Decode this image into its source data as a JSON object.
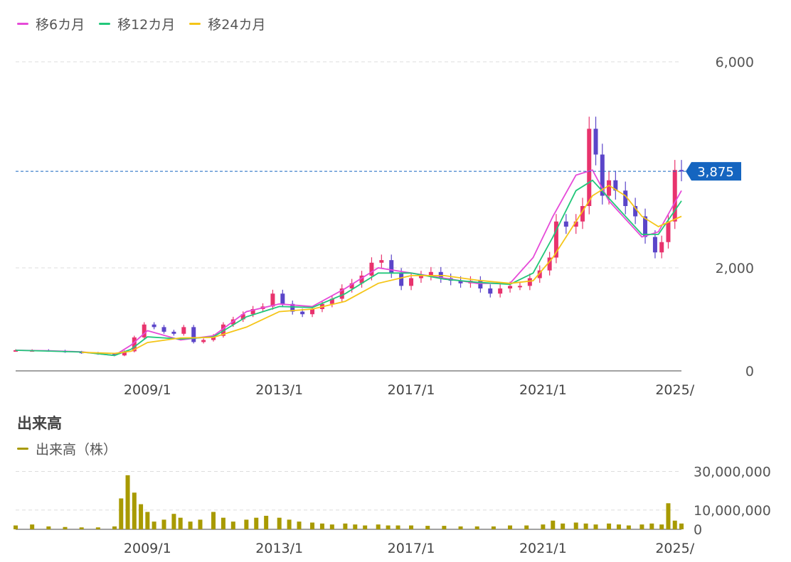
{
  "legend": {
    "ma6": {
      "label": "移6カ月",
      "color": "#e64ad8"
    },
    "ma12": {
      "label": "移12カ月",
      "color": "#22c77a"
    },
    "ma24": {
      "label": "移24カ月",
      "color": "#f5c518"
    }
  },
  "volume_section": {
    "title": "出来高",
    "legend_label": "出来高（株）",
    "color": "#a89a00"
  },
  "current_price": {
    "label": "3,875",
    "value": 3875,
    "color": "#1565c0"
  },
  "chart_data": [
    {
      "type": "candlestick",
      "y_ticks": [
        "6,000",
        "2,000",
        "0"
      ],
      "y_tick_values": [
        6000,
        2000,
        0
      ],
      "ylim": [
        0,
        6000
      ],
      "x_ticks": [
        "2009/1",
        "2013/1",
        "2017/1",
        "2021/1",
        "2025/"
      ],
      "x_tick_years": [
        2009,
        2013,
        2017,
        2021,
        2025
      ],
      "xlim": [
        2005.0,
        2025.2
      ],
      "grid": true,
      "colors": {
        "up": "#e8336d",
        "down": "#5b45c9"
      },
      "series": [
        {
          "name": "移6カ月",
          "x": [
            2005.0,
            2006.0,
            2007.0,
            2008.0,
            2008.5,
            2009.0,
            2010.0,
            2011.0,
            2012.0,
            2013.0,
            2014.0,
            2015.0,
            2016.0,
            2017.0,
            2018.0,
            2019.0,
            2020.0,
            2020.7,
            2021.3,
            2022.0,
            2022.5,
            2023.0,
            2024.0,
            2024.5,
            2025.2
          ],
          "y": [
            400,
            390,
            370,
            300,
            500,
            780,
            600,
            680,
            1150,
            1300,
            1250,
            1600,
            2000,
            1900,
            1800,
            1700,
            1700,
            2200,
            3000,
            3800,
            3900,
            3300,
            2600,
            2700,
            3500
          ]
        },
        {
          "name": "移12カ月",
          "x": [
            2005.0,
            2006.0,
            2007.0,
            2008.0,
            2008.5,
            2009.0,
            2010.0,
            2011.0,
            2012.0,
            2013.0,
            2014.0,
            2015.0,
            2016.0,
            2017.0,
            2018.0,
            2019.0,
            2020.0,
            2020.7,
            2021.3,
            2022.0,
            2022.5,
            2023.0,
            2024.0,
            2024.5,
            2025.2
          ],
          "y": [
            400,
            385,
            365,
            300,
            420,
            660,
            620,
            660,
            1050,
            1250,
            1230,
            1500,
            1900,
            1900,
            1780,
            1720,
            1680,
            1900,
            2600,
            3500,
            3700,
            3350,
            2650,
            2650,
            3300
          ]
        },
        {
          "name": "移24カ月",
          "x": [
            2007.0,
            2008.0,
            2008.5,
            2009.0,
            2010.0,
            2011.0,
            2012.0,
            2013.0,
            2014.0,
            2015.0,
            2016.0,
            2017.0,
            2018.0,
            2019.0,
            2020.0,
            2020.7,
            2021.3,
            2022.0,
            2022.5,
            2023.0,
            2023.5,
            2024.0,
            2024.5,
            2025.2
          ],
          "y": [
            360,
            340,
            380,
            550,
            640,
            650,
            850,
            1150,
            1200,
            1350,
            1700,
            1850,
            1850,
            1760,
            1700,
            1750,
            2200,
            2900,
            3400,
            3600,
            3400,
            3000,
            2800,
            3000
          ]
        }
      ],
      "candles": [
        [
          2005.0,
          400
        ],
        [
          2005.5,
          400
        ],
        [
          2006.0,
          390
        ],
        [
          2006.5,
          370
        ],
        [
          2007.0,
          350
        ],
        [
          2007.5,
          330
        ],
        [
          2008.0,
          300
        ],
        [
          2008.3,
          380
        ],
        [
          2008.6,
          650
        ],
        [
          2008.9,
          900
        ],
        [
          2009.2,
          850
        ],
        [
          2009.5,
          760
        ],
        [
          2009.8,
          720
        ],
        [
          2010.1,
          850
        ],
        [
          2010.4,
          560
        ],
        [
          2010.7,
          600
        ],
        [
          2011.0,
          680
        ],
        [
          2011.3,
          900
        ],
        [
          2011.6,
          1000
        ],
        [
          2011.9,
          1100
        ],
        [
          2012.2,
          1200
        ],
        [
          2012.5,
          1250
        ],
        [
          2012.8,
          1500
        ],
        [
          2013.1,
          1300
        ],
        [
          2013.4,
          1150
        ],
        [
          2013.7,
          1100
        ],
        [
          2014.0,
          1200
        ],
        [
          2014.3,
          1300
        ],
        [
          2014.6,
          1400
        ],
        [
          2014.9,
          1600
        ],
        [
          2015.2,
          1700
        ],
        [
          2015.5,
          1850
        ],
        [
          2015.8,
          2100
        ],
        [
          2016.1,
          2150
        ],
        [
          2016.4,
          1900
        ],
        [
          2016.7,
          1650
        ],
        [
          2017.0,
          1800
        ],
        [
          2017.3,
          1850
        ],
        [
          2017.6,
          1920
        ],
        [
          2017.9,
          1800
        ],
        [
          2018.2,
          1750
        ],
        [
          2018.5,
          1700
        ],
        [
          2018.8,
          1750
        ],
        [
          2019.1,
          1600
        ],
        [
          2019.4,
          1500
        ],
        [
          2019.7,
          1600
        ],
        [
          2020.0,
          1650
        ],
        [
          2020.3,
          1650
        ],
        [
          2020.6,
          1800
        ],
        [
          2020.9,
          1950
        ],
        [
          2021.2,
          2200
        ],
        [
          2021.4,
          2900
        ],
        [
          2021.7,
          2800
        ],
        [
          2022.0,
          2900
        ],
        [
          2022.2,
          3200
        ],
        [
          2022.4,
          4700
        ],
        [
          2022.6,
          4200
        ],
        [
          2022.8,
          3400
        ],
        [
          2023.0,
          3700
        ],
        [
          2023.2,
          3500
        ],
        [
          2023.5,
          3200
        ],
        [
          2023.8,
          3000
        ],
        [
          2024.1,
          2600
        ],
        [
          2024.4,
          2300
        ],
        [
          2024.6,
          2500
        ],
        [
          2024.8,
          2900
        ],
        [
          2025.0,
          3900
        ],
        [
          2025.2,
          3875
        ]
      ]
    },
    {
      "type": "bar",
      "y_ticks": [
        "30,000,000",
        "10,000,000",
        "0"
      ],
      "y_tick_values": [
        30000000,
        10000000,
        0
      ],
      "ylim": [
        0,
        32000000
      ],
      "x_ticks": [
        "2009/1",
        "2013/1",
        "2017/1",
        "2021/1",
        "2025/"
      ],
      "x_tick_years": [
        2009,
        2013,
        2017,
        2021,
        2025
      ],
      "xlim": [
        2005.0,
        2025.2
      ],
      "grid": true,
      "x": [
        2005.0,
        2005.5,
        2006.0,
        2006.5,
        2007.0,
        2007.5,
        2008.0,
        2008.2,
        2008.4,
        2008.6,
        2008.8,
        2009.0,
        2009.2,
        2009.5,
        2009.8,
        2010.0,
        2010.3,
        2010.6,
        2011.0,
        2011.3,
        2011.6,
        2012.0,
        2012.3,
        2012.6,
        2013.0,
        2013.3,
        2013.6,
        2014.0,
        2014.3,
        2014.6,
        2015.0,
        2015.3,
        2015.6,
        2016.0,
        2016.3,
        2016.6,
        2017.0,
        2017.5,
        2018.0,
        2018.5,
        2019.0,
        2019.5,
        2020.0,
        2020.5,
        2021.0,
        2021.3,
        2021.6,
        2022.0,
        2022.3,
        2022.6,
        2023.0,
        2023.3,
        2023.6,
        2024.0,
        2024.3,
        2024.6,
        2024.8,
        2025.0,
        2025.2
      ],
      "values": [
        2000000,
        2500000,
        1500000,
        1200000,
        1000000,
        1000000,
        1500000,
        16000000,
        28000000,
        19000000,
        13000000,
        9000000,
        4000000,
        5000000,
        8000000,
        6000000,
        4000000,
        5000000,
        9000000,
        6000000,
        4000000,
        5000000,
        6000000,
        7000000,
        6000000,
        5000000,
        4000000,
        3500000,
        3000000,
        2500000,
        3000000,
        2500000,
        2000000,
        2500000,
        2000000,
        2000000,
        2000000,
        1800000,
        1800000,
        1500000,
        1500000,
        1500000,
        2000000,
        2000000,
        2500000,
        4500000,
        3000000,
        3500000,
        3000000,
        2500000,
        3000000,
        2500000,
        2000000,
        2500000,
        3000000,
        2500000,
        13500000,
        4500000,
        3000000
      ]
    }
  ]
}
